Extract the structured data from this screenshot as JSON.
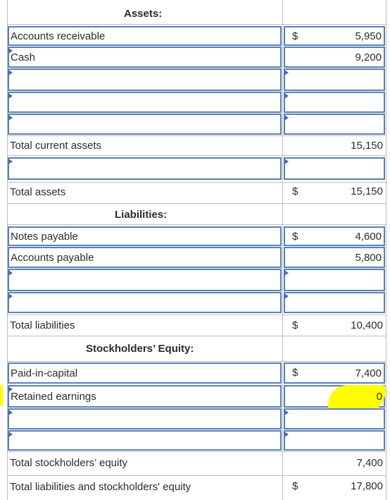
{
  "assets": {
    "heading": "Assets:",
    "rows": [
      {
        "label": "Accounts receivable",
        "currency": "$",
        "value": "5,950"
      },
      {
        "label": "Cash",
        "currency": "",
        "value": "9,200"
      }
    ],
    "total_current_label": "Total current assets",
    "total_current_value": "15,150",
    "total_label": "Total assets",
    "total_currency": "$",
    "total_value": "15,150"
  },
  "liabilities": {
    "heading": "Liabilities:",
    "rows": [
      {
        "label": "Notes payable",
        "currency": "$",
        "value": "4,600"
      },
      {
        "label": "Accounts payable",
        "currency": "",
        "value": "5,800"
      }
    ],
    "total_label": "Total liabilities",
    "total_currency": "$",
    "total_value": "10,400"
  },
  "equity": {
    "heading": "Stockholders’ Equity:",
    "rows": [
      {
        "label": "Paid-in-capital",
        "currency": "$",
        "value": "7,400"
      },
      {
        "label": "Retained earnings",
        "currency": "",
        "value": "0"
      }
    ],
    "total_label": "Total stockholders’ equity",
    "total_value": "7,400",
    "grand_total_label": "Total liabilities and stockholders' equity",
    "grand_total_currency": "$",
    "grand_total_value": "17,800"
  },
  "colors": {
    "input_border": "#5b7fb6",
    "highlight": "#ffff00"
  }
}
